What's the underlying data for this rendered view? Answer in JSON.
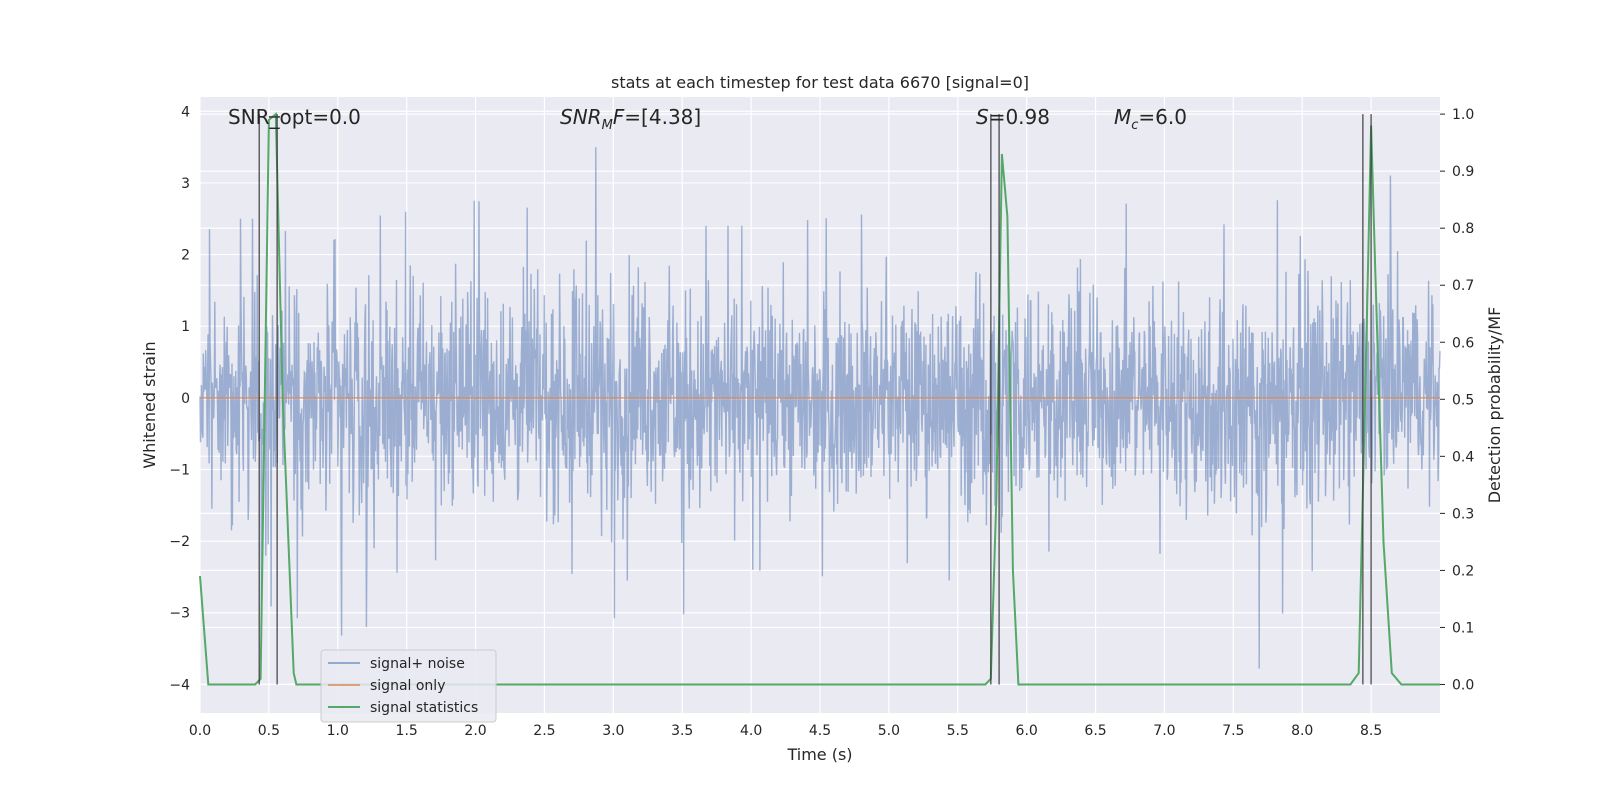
{
  "chart_data": {
    "type": "line",
    "title": "stats at each timestep for test data 6670 [signal=0]",
    "xlabel": "Time (s)",
    "ylabel_left": "Whitened strain",
    "ylabel_right": "Detection probability/MF",
    "xlim": [
      0,
      9.0
    ],
    "ylim_left": [
      -4.4,
      4.2
    ],
    "ylim_right": [
      -0.05,
      1.03
    ],
    "x_ticks": [
      "0.0",
      "0.5",
      "1.0",
      "1.5",
      "2.0",
      "2.5",
      "3.0",
      "3.5",
      "4.0",
      "4.5",
      "5.0",
      "5.5",
      "6.0",
      "6.5",
      "7.0",
      "7.5",
      "8.0",
      "8.5"
    ],
    "y_ticks_left": [
      "−4",
      "−3",
      "−2",
      "−1",
      "0",
      "1",
      "2",
      "3",
      "4"
    ],
    "y_ticks_right": [
      "0.0",
      "0.1",
      "0.2",
      "0.3",
      "0.4",
      "0.5",
      "0.6",
      "0.7",
      "0.8",
      "0.9",
      "1.0"
    ],
    "grid": true,
    "legend_position": "lower-left",
    "annotations": {
      "snr_opt": "SNR_opt=0.0",
      "snr_mf_italic": "SNR",
      "snr_mf_sub": "M",
      "snr_mf_rest_italic": "F",
      "snr_mf_value": "=[4.38]",
      "s_italic": "S",
      "s_value": "=0.98",
      "mc_italic": "M",
      "mc_sub": "c",
      "mc_value": "=6.0"
    },
    "series": [
      {
        "name": "signal+ noise",
        "color": "#4c72b0",
        "axis": "left",
        "description_values": "dense random noise, band roughly ±2, peaks to about ±3.8",
        "envelope": [
          {
            "x": 0.0,
            "hi": 2.3,
            "lo": -2.4
          },
          {
            "x": 0.25,
            "hi": 2.5,
            "lo": -3.4
          },
          {
            "x": 0.5,
            "hi": 2.5,
            "lo": -2.9
          },
          {
            "x": 0.85,
            "hi": 2.0,
            "lo": -3.2
          },
          {
            "x": 1.15,
            "hi": 2.5,
            "lo": -3.4
          },
          {
            "x": 1.5,
            "hi": 2.6,
            "lo": -2.2
          },
          {
            "x": 1.8,
            "hi": 2.8,
            "lo": -2.3
          },
          {
            "x": 2.6,
            "hi": 2.6,
            "lo": -2.7
          },
          {
            "x": 2.85,
            "hi": 3.8,
            "lo": -2.1
          },
          {
            "x": 2.95,
            "hi": 2.5,
            "lo": -3.4
          },
          {
            "x": 3.2,
            "hi": 3.4,
            "lo": -2.0
          },
          {
            "x": 3.45,
            "hi": 2.4,
            "lo": -3.1
          },
          {
            "x": 4.0,
            "hi": 2.4,
            "lo": -2.4
          },
          {
            "x": 4.5,
            "hi": 2.5,
            "lo": -2.5
          },
          {
            "x": 5.0,
            "hi": 2.6,
            "lo": -2.2
          },
          {
            "x": 5.5,
            "hi": 2.5,
            "lo": -2.6
          },
          {
            "x": 5.75,
            "hi": 2.7,
            "lo": -3.2
          },
          {
            "x": 6.1,
            "hi": 3.2,
            "lo": -2.1
          },
          {
            "x": 6.5,
            "hi": 2.6,
            "lo": -2.4
          },
          {
            "x": 6.9,
            "hi": 2.8,
            "lo": -2.0
          },
          {
            "x": 7.4,
            "hi": 2.4,
            "lo": -3.3
          },
          {
            "x": 7.7,
            "hi": 2.6,
            "lo": -3.8
          },
          {
            "x": 8.0,
            "hi": 3.0,
            "lo": -2.3
          },
          {
            "x": 8.3,
            "hi": 2.5,
            "lo": -2.8
          },
          {
            "x": 8.75,
            "hi": 3.3,
            "lo": -2.0
          },
          {
            "x": 9.0,
            "hi": 2.3,
            "lo": -2.0
          }
        ]
      },
      {
        "name": "signal only",
        "color": "#dd8452",
        "axis": "left",
        "x": [
          0.0,
          9.0
        ],
        "y": [
          0.0,
          0.0
        ]
      },
      {
        "name": "signal statistics",
        "color": "#55a868",
        "axis": "right",
        "x": [
          0.0,
          0.06,
          0.12,
          0.4,
          0.44,
          0.5,
          0.55,
          0.6,
          0.68,
          0.7,
          5.7,
          5.74,
          5.78,
          5.82,
          5.86,
          5.9,
          5.94,
          7.4,
          7.72,
          7.8,
          8.35,
          8.41,
          8.47,
          8.5,
          8.53,
          8.59,
          8.65,
          8.72,
          9.0
        ],
        "y": [
          0.19,
          0.0,
          0.0,
          0.0,
          0.01,
          0.99,
          1.0,
          0.5,
          0.02,
          0.0,
          0.0,
          0.01,
          0.33,
          0.93,
          0.82,
          0.2,
          0.0,
          0.0,
          0.0,
          0.0,
          0.0,
          0.02,
          0.65,
          0.98,
          0.73,
          0.25,
          0.02,
          0.0,
          0.0
        ]
      }
    ],
    "vertical_markers": [
      0.43,
      0.56,
      5.74,
      5.8,
      8.44,
      8.5
    ],
    "hbar_at_top": [
      0.5,
      0.58
    ]
  },
  "colors": {
    "axes_background": "#eaeaf2",
    "grid": "#ffffff",
    "marker_line": "#333333"
  }
}
